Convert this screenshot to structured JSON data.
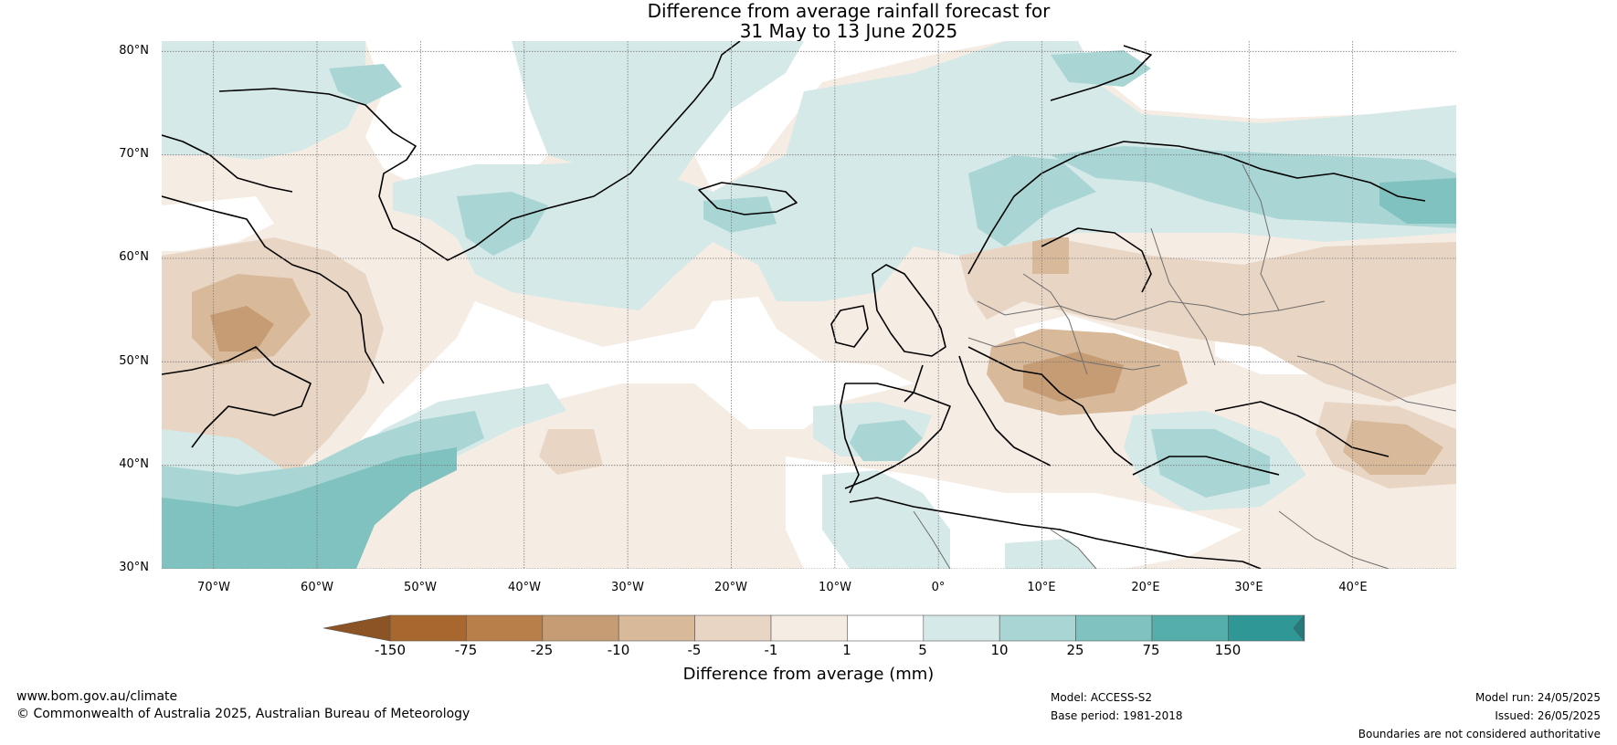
{
  "title": {
    "line1": "Difference from average rainfall forecast for",
    "line2": "31 May to 13 June 2025"
  },
  "map": {
    "lon_range": [
      -75,
      50
    ],
    "lat_range": [
      30,
      81
    ],
    "latitude_labels": [
      "80°N",
      "70°N",
      "60°N",
      "50°N",
      "40°N",
      "30°N"
    ],
    "longitude_labels": [
      "70°W",
      "60°W",
      "50°W",
      "40°W",
      "30°W",
      "20°W",
      "10°W",
      "0°",
      "10°E",
      "20°E",
      "30°E",
      "40°E"
    ],
    "gridlines": true
  },
  "legend": {
    "title": "Difference from average (mm)",
    "ticks": [
      "-150",
      "-75",
      "-25",
      "-10",
      "-5",
      "-1",
      "1",
      "5",
      "10",
      "25",
      "75",
      "150"
    ],
    "colors": [
      "#a8672f",
      "#b97f4b",
      "#c69c74",
      "#d8b99a",
      "#e8d5c4",
      "#f5ece4",
      "#ffffff",
      "#d5e9e8",
      "#a9d6d4",
      "#7fc2bf",
      "#56aeab",
      "#2f9896"
    ],
    "under_color": "#8c5424",
    "over_color": "#247b79"
  },
  "footer": {
    "website": "www.bom.gov.au/climate",
    "copyright": "© Commonwealth of Australia 2025, Australian Bureau of Meteorology",
    "model": "Model: ACCESS-S2",
    "base_period": "Base period: 1981-2018",
    "model_run": "Model run: 24/05/2025",
    "issued": "Issued: 26/05/2025",
    "disclaimer": "Boundaries are not considered authoritative"
  }
}
